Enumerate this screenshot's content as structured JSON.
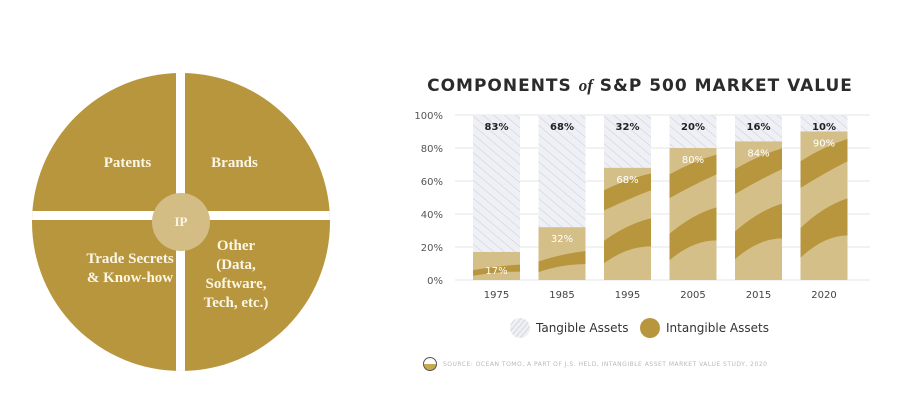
{
  "diagram": {
    "center": "IP",
    "quadrants": [
      {
        "label": "Patents"
      },
      {
        "label": "Brands"
      },
      {
        "label": "Trade Secrets & Know-how"
      },
      {
        "label": "Other (Data, Software, Tech, etc.)"
      }
    ],
    "colors": {
      "quadrant": "#b8963e",
      "center": "#d3bd85",
      "text": "#fbf6e6"
    }
  },
  "chart_data": {
    "type": "bar",
    "stacked": true,
    "title_parts": [
      "COMPONENTS",
      "of",
      "S&P 500 MARKET VALUE"
    ],
    "categories": [
      "1975",
      "1985",
      "1995",
      "2005",
      "2015",
      "2020"
    ],
    "series": [
      {
        "name": "Intangible Assets",
        "values": [
          17,
          32,
          68,
          80,
          84,
          90
        ],
        "labels": [
          "17%",
          "32%",
          "68%",
          "80%",
          "84%",
          "90%"
        ],
        "color": "#b8963e"
      },
      {
        "name": "Tangible Assets",
        "values": [
          83,
          68,
          32,
          20,
          16,
          10
        ],
        "labels": [
          "83%",
          "68%",
          "32%",
          "20%",
          "16%",
          "10%"
        ],
        "color": "#eceef4"
      }
    ],
    "yticks": [
      "0%",
      "20%",
      "40%",
      "60%",
      "80%",
      "100%"
    ],
    "ylim": [
      0,
      100
    ],
    "grid": true,
    "legend_position": "bottom",
    "legend": [
      "Tangible Assets",
      "Intangible Assets"
    ],
    "source": "SOURCE:  OCEAN TOMO, A PART OF J.S. HELD, INTANGIBLE ASSET MARKET VALUE STUDY, 2020"
  }
}
